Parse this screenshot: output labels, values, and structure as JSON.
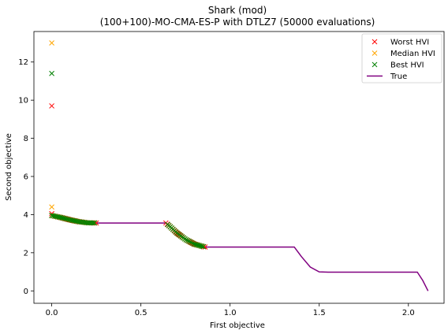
{
  "chart_data": {
    "type": "scatter",
    "title": "Shark (mod)",
    "subtitle": "(100+100)-MO-CMA-ES-P with DTLZ7 (50000 evaluations)",
    "xlabel": "First objective",
    "ylabel": "Second objective",
    "xlim": [
      -0.1,
      2.2
    ],
    "ylim": [
      -0.65,
      13.6
    ],
    "xticks": [
      0.0,
      0.5,
      1.0,
      1.5,
      2.0
    ],
    "xtick_labels": [
      "0.0",
      "0.5",
      "1.0",
      "1.5",
      "2.0"
    ],
    "yticks": [
      0,
      2,
      4,
      6,
      8,
      10,
      12
    ],
    "ytick_labels": [
      "0",
      "2",
      "4",
      "6",
      "8",
      "10",
      "12"
    ],
    "grid": false,
    "legend_position": "top-right",
    "series": [
      {
        "name": "Worst HVI",
        "marker": "x",
        "color": "#ff0000",
        "outliers": [
          [
            0.0,
            9.7
          ],
          [
            0.0,
            4.05
          ]
        ],
        "segments": [
          {
            "x_start": 0.0,
            "x_end": 0.25,
            "n": 30
          },
          {
            "x_start": 0.64,
            "x_end": 0.86,
            "n": 28
          }
        ]
      },
      {
        "name": "Median HVI",
        "marker": "x",
        "color": "#ffa500",
        "outliers": [
          [
            0.0,
            13.0
          ],
          [
            0.0,
            4.4
          ]
        ],
        "segments": [
          {
            "x_start": 0.0,
            "x_end": 0.24,
            "n": 30
          },
          {
            "x_start": 0.65,
            "x_end": 0.85,
            "n": 28
          }
        ]
      },
      {
        "name": "Best HVI",
        "marker": "x",
        "color": "#008000",
        "outliers": [
          [
            0.0,
            11.4
          ]
        ],
        "segments": [
          {
            "x_start": 0.0,
            "x_end": 0.24,
            "n": 30
          },
          {
            "x_start": 0.65,
            "x_end": 0.85,
            "n": 28
          }
        ]
      },
      {
        "name": "True",
        "type": "line",
        "color": "#800080",
        "x": [
          0.0,
          0.05,
          0.1,
          0.15,
          0.2,
          0.25,
          0.3,
          0.4,
          0.5,
          0.64,
          0.66,
          0.7,
          0.75,
          0.8,
          0.85,
          0.86,
          0.95,
          1.1,
          1.25,
          1.36,
          1.4,
          1.45,
          1.5,
          1.55,
          1.7,
          1.9,
          2.05,
          2.08,
          2.11
        ],
        "y": [
          3.95,
          3.85,
          3.73,
          3.63,
          3.57,
          3.56,
          3.56,
          3.56,
          3.56,
          3.56,
          3.4,
          3.05,
          2.7,
          2.45,
          2.32,
          2.3,
          2.3,
          2.3,
          2.3,
          2.3,
          1.8,
          1.25,
          1.0,
          0.98,
          0.98,
          0.98,
          0.98,
          0.55,
          0.0
        ]
      }
    ]
  }
}
